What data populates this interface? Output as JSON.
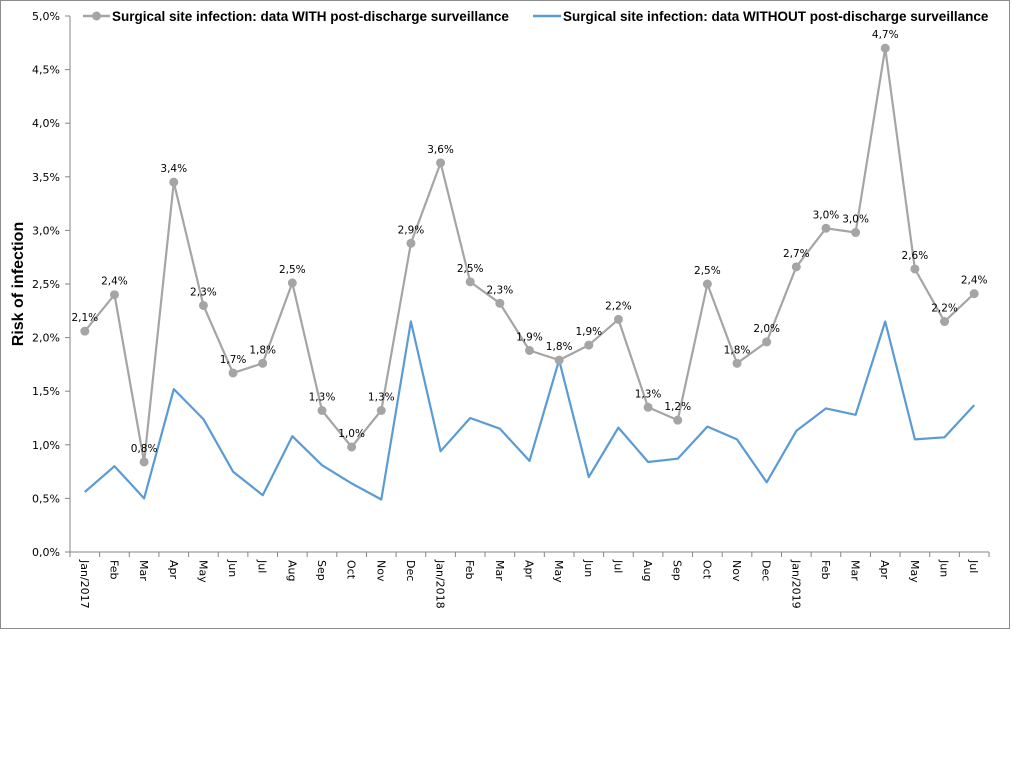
{
  "chart_data": {
    "type": "line",
    "title": "",
    "xlabel": "",
    "ylabel": "Risk of infection",
    "ylim": [
      0,
      5.0
    ],
    "y_unit": "%",
    "y_ticks": [
      0.0,
      0.5,
      1.0,
      1.5,
      2.0,
      2.5,
      3.0,
      3.5,
      4.0,
      4.5,
      5.0
    ],
    "y_tick_labels": [
      "0,0%",
      "0,5%",
      "1,0%",
      "1,5%",
      "2,0%",
      "2,5%",
      "3,0%",
      "3,5%",
      "4,0%",
      "4,5%",
      "5,0%"
    ],
    "grid": false,
    "legend_position": "top",
    "categories": [
      "Jan/2017",
      "Feb",
      "Mar",
      "Apr",
      "May",
      "Jun",
      "Jul",
      "Aug",
      "Sep",
      "Oct",
      "Nov",
      "Dec",
      "Jan/2018",
      "Feb",
      "Mar",
      "Apr",
      "May",
      "Jun",
      "Jul",
      "Aug",
      "Sep",
      "Oct",
      "Nov",
      "Dec",
      "Jan/2019",
      "Feb",
      "Mar",
      "Apr",
      "May",
      "Jun",
      "Jul"
    ],
    "series": [
      {
        "name": "Surgical site infection: data WITH post-discharge surveillance",
        "color": "#a5a5a5",
        "markers": true,
        "values": [
          2.06,
          2.4,
          0.84,
          3.45,
          2.3,
          1.67,
          1.76,
          2.51,
          1.32,
          0.98,
          1.32,
          2.88,
          3.63,
          2.52,
          2.32,
          1.88,
          1.79,
          1.93,
          2.17,
          1.35,
          1.23,
          2.5,
          1.76,
          1.96,
          2.66,
          3.02,
          2.98,
          4.7,
          2.64,
          2.15,
          2.41
        ],
        "data_labels": [
          "2,1%",
          "2,4%",
          "0,8%",
          "3,4%",
          "2,3%",
          "1,7%",
          "1,8%",
          "2,5%",
          "1,3%",
          "1,0%",
          "1,3%",
          "2,9%",
          "3,6%",
          "2,5%",
          "2,3%",
          "1,9%",
          "1,8%",
          "1,9%",
          "2,2%",
          "1,3%",
          "1,2%",
          "2,5%",
          "1,8%",
          "2,0%",
          "2,7%",
          "3,0%",
          "3,0%",
          "4,7%",
          "2,6%",
          "2,2%",
          "2,4%"
        ]
      },
      {
        "name": "Surgical site infection: data WITHOUT post-discharge surveillance",
        "color": "#5b9bd5",
        "markers": false,
        "values": [
          0.56,
          0.8,
          0.5,
          1.52,
          1.24,
          0.75,
          0.53,
          1.08,
          0.81,
          0.64,
          0.49,
          2.15,
          0.94,
          1.25,
          1.15,
          0.85,
          1.79,
          0.7,
          1.16,
          0.84,
          0.87,
          1.17,
          1.05,
          0.65,
          1.13,
          1.34,
          1.28,
          2.15,
          1.05,
          1.07,
          1.37
        ]
      }
    ]
  }
}
